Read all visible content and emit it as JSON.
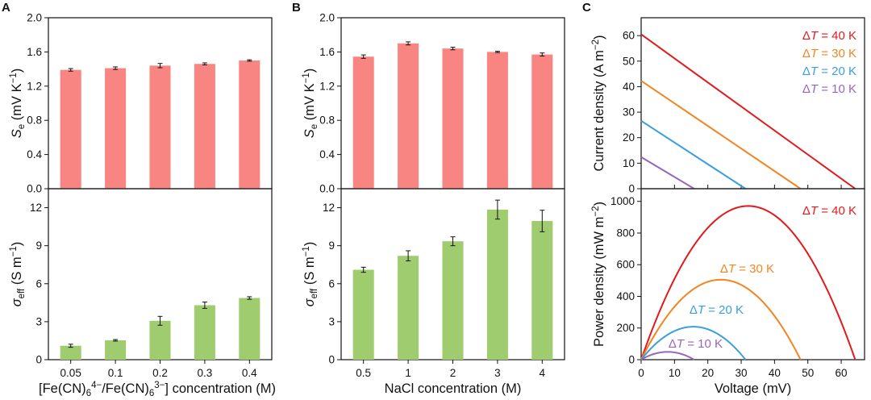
{
  "panels": [
    {
      "letter": "A"
    },
    {
      "letter": "B"
    },
    {
      "letter": "C"
    }
  ],
  "colors": {
    "bar_top": "#f98582",
    "bar_bottom": "#9fcc6e",
    "dT40": "#e31a1c",
    "dT30": "#f28522",
    "dT20": "#3a9fdc",
    "dT10": "#9467bd"
  },
  "chart_data": [
    {
      "id": "A-top",
      "type": "bar",
      "categories": [
        "0.05",
        "0.1",
        "0.2",
        "0.3",
        "0.4"
      ],
      "values": [
        1.39,
        1.41,
        1.44,
        1.46,
        1.5
      ],
      "errors": [
        0.015,
        0.015,
        0.025,
        0.012,
        0.008
      ],
      "ylabel_main": "S",
      "ylabel_sub": "e",
      "ylabel_units": "(mV K",
      "ylabel_sup": "−1",
      "ylabel_close": ")",
      "ylim": [
        0,
        2.0
      ],
      "yticks": [
        "0.0",
        "0.4",
        "0.8",
        "1.2",
        "1.6",
        "2.0"
      ]
    },
    {
      "id": "A-bottom",
      "type": "bar",
      "categories": [
        "0.05",
        "0.1",
        "0.2",
        "0.3",
        "0.4"
      ],
      "values": [
        1.1,
        1.53,
        3.07,
        4.3,
        4.87
      ],
      "errors": [
        0.12,
        0.06,
        0.35,
        0.25,
        0.1
      ],
      "ylabel_main": "σ",
      "ylabel_sub": "eff",
      "ylabel_units": "(S m",
      "ylabel_sup": "−1",
      "ylabel_close": ")",
      "ylim": [
        0,
        13.5
      ],
      "yticks": [
        "0",
        "3",
        "6",
        "9",
        "12"
      ],
      "xlabel_parts": [
        "[Fe(CN)",
        "6",
        "4−",
        "/Fe(CN)",
        "6",
        "3−",
        "] concentration (M)"
      ]
    },
    {
      "id": "B-top",
      "type": "bar",
      "categories": [
        "0.5",
        "1",
        "2",
        "3",
        "4"
      ],
      "values": [
        1.545,
        1.7,
        1.64,
        1.6,
        1.57
      ],
      "errors": [
        0.02,
        0.018,
        0.015,
        0.008,
        0.018
      ],
      "ylabel_main": "S",
      "ylabel_sub": "e",
      "ylabel_units": "(mV K",
      "ylabel_sup": "−1",
      "ylabel_close": ")",
      "ylim": [
        0,
        2.0
      ],
      "yticks": [
        "0.0",
        "0.4",
        "0.8",
        "1.2",
        "1.6",
        "2.0"
      ]
    },
    {
      "id": "B-bottom",
      "type": "bar",
      "categories": [
        "0.5",
        "1",
        "2",
        "3",
        "4"
      ],
      "values": [
        7.1,
        8.2,
        9.35,
        11.85,
        10.95
      ],
      "errors": [
        0.2,
        0.4,
        0.35,
        0.75,
        0.85
      ],
      "ylabel_main": "σ",
      "ylabel_sub": "eff",
      "ylabel_units": "(S m",
      "ylabel_sup": "−1",
      "ylabel_close": ")",
      "ylim": [
        0,
        13.5
      ],
      "yticks": [
        "0",
        "3",
        "6",
        "9",
        "12"
      ],
      "xlabel": "NaCl concentration (M)"
    },
    {
      "id": "C-top",
      "type": "line",
      "ylabel": "Current density (A m",
      "ylabel_sup": "−2",
      "ylabel_close": ")",
      "xlim": [
        0,
        67
      ],
      "ylim": [
        0,
        67
      ],
      "yticks": [
        "0",
        "10",
        "20",
        "30",
        "40",
        "50",
        "60"
      ],
      "series": [
        {
          "name": "40",
          "isc": 60.5,
          "voc": 64.2
        },
        {
          "name": "30",
          "isc": 42.3,
          "voc": 47.8
        },
        {
          "name": "20",
          "isc": 26.6,
          "voc": 31.3
        },
        {
          "name": "10",
          "isc": 12.4,
          "voc": 15.9
        }
      ]
    },
    {
      "id": "C-bottom",
      "type": "line",
      "ylabel": "Power density (mW m",
      "ylabel_sup": "−2",
      "ylabel_close": ")",
      "xlabel": "Voltage (mV)",
      "xlim": [
        0,
        67
      ],
      "ylim": [
        0,
        1080
      ],
      "xticks": [
        "0",
        "10",
        "20",
        "30",
        "40",
        "50",
        "60"
      ],
      "yticks": [
        "0",
        "200",
        "400",
        "600",
        "800",
        "1000"
      ],
      "series": [
        {
          "name": "40",
          "isc": 60.5,
          "voc": 64.2
        },
        {
          "name": "30",
          "isc": 42.3,
          "voc": 47.8
        },
        {
          "name": "20",
          "isc": 26.6,
          "voc": 31.3
        },
        {
          "name": "10",
          "isc": 12.4,
          "voc": 15.9
        }
      ]
    }
  ],
  "legend": {
    "delta": "Δ",
    "italic": "T",
    "eq": " = ",
    "unit": " K",
    "entries": [
      "40",
      "30",
      "20",
      "10"
    ]
  }
}
